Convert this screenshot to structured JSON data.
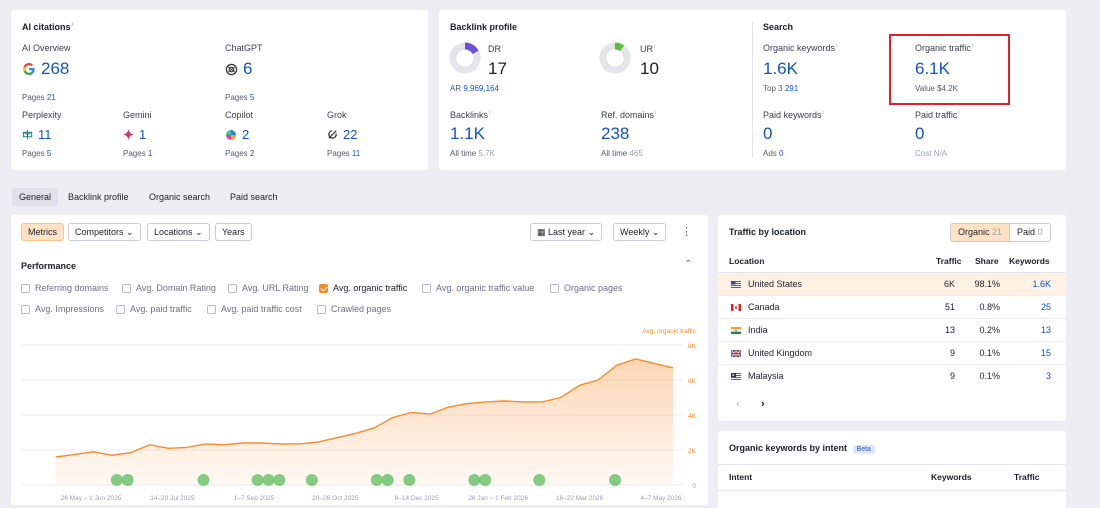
{
  "ai_citations": {
    "title": "AI citations",
    "ai_overview": {
      "label": "AI Overview",
      "value": "268",
      "pages_label": "Pages",
      "pages": "21"
    },
    "chatgpt": {
      "label": "ChatGPT",
      "value": "6",
      "pages_label": "Pages",
      "pages": "5"
    },
    "perplexity": {
      "label": "Perplexity",
      "value": "11",
      "pages_label": "Pages",
      "pages": "5"
    },
    "gemini": {
      "label": "Gemini",
      "value": "1",
      "pages_label": "Pages",
      "pages": "1"
    },
    "copilot": {
      "label": "Copilot",
      "value": "2",
      "pages_label": "Pages",
      "pages": "2"
    },
    "grok": {
      "label": "Grok",
      "value": "22",
      "pages_label": "Pages",
      "pages": "11"
    }
  },
  "backlink_profile": {
    "title": "Backlink profile",
    "dr": {
      "label": "DR",
      "value": "17",
      "ar_label": "AR",
      "ar": "9,969,164",
      "fill": 0.17
    },
    "ur": {
      "label": "UR",
      "value": "10",
      "fill": 0.1
    },
    "backlinks": {
      "label": "Backlinks",
      "value": "1.1K",
      "sub_label": "All time",
      "sub": "5.7K"
    },
    "ref_domains": {
      "label": "Ref. domains",
      "value": "238",
      "sub_label": "All time",
      "sub": "465"
    }
  },
  "search": {
    "title": "Search",
    "organic_keywords": {
      "label": "Organic keywords",
      "value": "1.6K",
      "sub_label": "Top 3",
      "sub": "291"
    },
    "organic_traffic": {
      "label": "Organic traffic",
      "value": "6.1K",
      "sub_label": "Value",
      "sub": "$4.2K"
    },
    "paid_keywords": {
      "label": "Paid keywords",
      "value": "0",
      "sub_label": "Ads",
      "sub": "0"
    },
    "paid_traffic": {
      "label": "Paid traffic",
      "value": "0",
      "sub_label": "Cost",
      "sub": "N/A"
    }
  },
  "tabs": [
    "General",
    "Backlink profile",
    "Organic search",
    "Paid search"
  ],
  "toolbar": {
    "metrics": "Metrics",
    "competitors": "Competitors",
    "locations": "Locations",
    "years": "Years",
    "period": "Last year",
    "interval": "Weekly"
  },
  "performance": {
    "title": "Performance",
    "checkboxes": {
      "referring_domains": "Referring domains",
      "avg_domain_rating": "Avg. Domain Rating",
      "avg_url_rating": "Avg. URL Rating",
      "avg_organic_traffic": "Avg. organic traffic",
      "avg_organic_traffic_value": "Avg. organic traffic value",
      "organic_pages": "Organic pages",
      "avg_impressions": "Avg. Impressions",
      "avg_paid_traffic": "Avg. paid traffic",
      "avg_paid_traffic_cost": "Avg. paid traffic cost",
      "crawled_pages": "Crawled pages"
    }
  },
  "chart_data": {
    "type": "area",
    "series": [
      {
        "name": "Avg. organic traffic",
        "values": [
          1600,
          1750,
          1900,
          1700,
          1850,
          2300,
          2100,
          2150,
          2350,
          2300,
          2400,
          2400,
          2350,
          2350,
          2450,
          2700,
          2950,
          3250,
          3850,
          4150,
          4050,
          4450,
          4650,
          4750,
          4800,
          4750,
          4750,
          5000,
          5700,
          6000,
          6850,
          7200,
          6950,
          6700
        ]
      }
    ],
    "x_tick_labels": [
      "26 May – 1 Jun 2025",
      "14–20 Jul 2025",
      "1–7 Sep 2025",
      "20–26 Oct 2025",
      "8–14 Dec 2025",
      "26 Jan – 1 Feb 2026",
      "16–22 Mar 2026",
      "4–7 May 2026"
    ],
    "y_ticks": [
      "8K",
      "6K",
      "4K",
      "2K",
      "0"
    ],
    "ylim": [
      0,
      8000
    ],
    "color": "#f78b2a",
    "event_markers": [
      7,
      8,
      15,
      20,
      21,
      22,
      25,
      31,
      32,
      34,
      40,
      41,
      46,
      53
    ],
    "gridlines": true
  },
  "traffic_by_location": {
    "title": "Traffic by location",
    "organic_label": "Organic",
    "organic_count": "21",
    "paid_label": "Paid",
    "paid_count": "0",
    "headers": {
      "location": "Location",
      "traffic": "Traffic",
      "share": "Share",
      "keywords": "Keywords"
    },
    "rows": [
      {
        "country": "United States",
        "traffic": "6K",
        "share": "98.1%",
        "keywords": "1.6K"
      },
      {
        "country": "Canada",
        "traffic": "51",
        "share": "0.8%",
        "keywords": "25"
      },
      {
        "country": "India",
        "traffic": "13",
        "share": "0.2%",
        "keywords": "13"
      },
      {
        "country": "United Kingdom",
        "traffic": "9",
        "share": "0.1%",
        "keywords": "15"
      },
      {
        "country": "Malaysia",
        "traffic": "9",
        "share": "0.1%",
        "keywords": "3"
      }
    ]
  },
  "keywords_by_intent": {
    "title": "Organic keywords by intent",
    "badge": "Beta",
    "headers": {
      "intent": "Intent",
      "keywords": "Keywords",
      "traffic": "Traffic"
    }
  },
  "colors": {
    "accent": "#f78b2a",
    "link": "#1452c8",
    "highlight": "#e0202a"
  }
}
